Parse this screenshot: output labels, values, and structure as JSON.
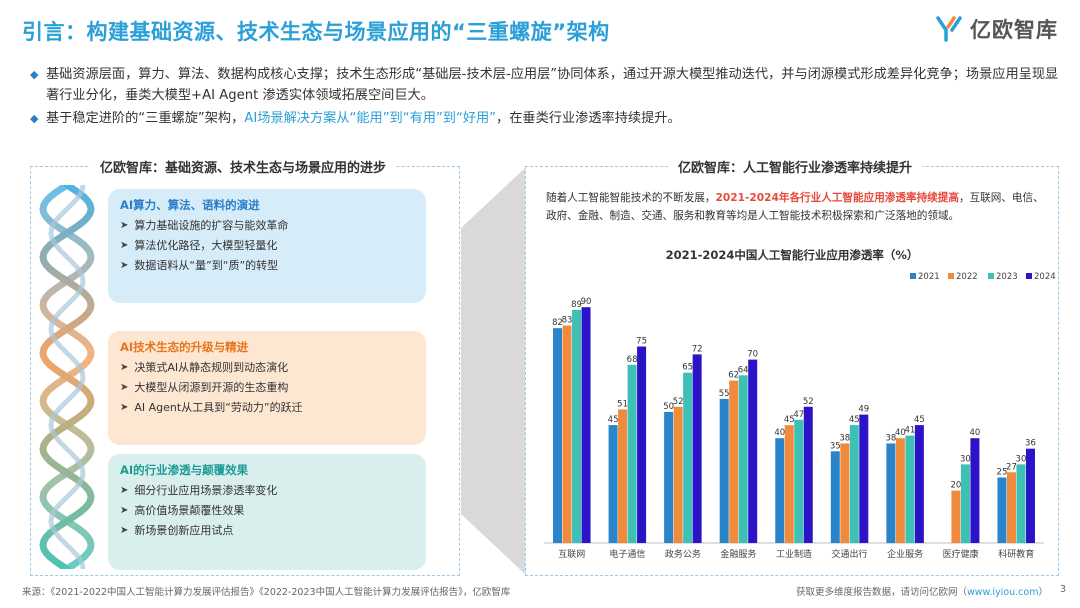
{
  "title": "引言：构建基础资源、技术生态与场景应用的“三重螺旋”架构",
  "logo": {
    "name": "亿欧智库"
  },
  "bullets": [
    {
      "text": "基础资源层面，算力、算法、数据构成核心支撑；技术生态形成“基础层-技术层-应用层”协同体系，通过开源大模型推动迭代，并与闭源模式形成差异化竞争；场景应用呈现显著行业分化，垂类大模型+AI Agent 渗透实体领域拓展空间巨大。"
    },
    {
      "text_a": "基于稳定进阶的“三重螺旋”架构，",
      "highlight": "AI场景解决方案从“能用”到“有用”到“好用”",
      "text_b": "，在垂类行业渗透率持续提升。"
    }
  ],
  "left_panel": {
    "header": "亿欧智库：基础资源、技术生态与场景应用的进步",
    "boxes": [
      {
        "title": "AI算力、算法、语料的演进",
        "items": [
          "算力基础设施的扩容与能效革命",
          "算法优化路径，大模型轻量化",
          "数据语料从“量”到“质”的转型"
        ]
      },
      {
        "title": "AI技术生态的升级与精进",
        "items": [
          "决策式AI从静态规则到动态演化",
          "大模型从闭源到开源的生态重构",
          "AI Agent从工具到“劳动力”的跃迁"
        ]
      },
      {
        "title": "AI的行业渗透与颠覆效果",
        "items": [
          "细分行业应用场景渗透率变化",
          "高价值场景颠覆性效果",
          "新场景创新应用试点"
        ]
      }
    ]
  },
  "right_panel": {
    "header": "亿欧智库：人工智能行业渗透率持续提升",
    "intro_a": "随着人工智能智能技术的不断发展，",
    "intro_highlight": "2021-2024年各行业人工智能应用渗透率持续提高",
    "intro_b": "，互联网、电信、政府、金融、制造、交通、服务和教育等均是人工智能技术积极探索和广泛落地的领域。"
  },
  "chart_data": {
    "type": "bar",
    "title": "2021-2024中国人工智能行业应用渗透率（%）",
    "categories": [
      "互联网",
      "电子通信",
      "政务公务",
      "金融服务",
      "工业制造",
      "交通出行",
      "企业服务",
      "医疗健康",
      "科研教育"
    ],
    "series": [
      {
        "name": "2021",
        "color": "#2a84c9",
        "values": [
          82,
          45,
          50,
          55,
          40,
          35,
          38,
          null,
          25
        ]
      },
      {
        "name": "2022",
        "color": "#f08a3c",
        "values": [
          83,
          51,
          52,
          62,
          45,
          38,
          40,
          20,
          27
        ]
      },
      {
        "name": "2023",
        "color": "#3dc1b4",
        "values": [
          89,
          68,
          65,
          64,
          47,
          45,
          41,
          30,
          30
        ]
      },
      {
        "name": "2024",
        "color": "#2b13c8",
        "values": [
          90,
          75,
          72,
          70,
          52,
          49,
          45,
          40,
          36
        ]
      }
    ],
    "ylim": [
      0,
      100
    ],
    "xlabel": "",
    "ylabel": "",
    "legend": "top-right"
  },
  "footer": {
    "source": "来源：《2021-2022中国人工智能计算力发展评估报告》《2022-2023中国人工智能计算力发展评估报告》，亿欧智库",
    "more_a": "获取更多维度报告数据，请访问亿欧网（",
    "more_link": "www.iyiou.com",
    "more_b": "）",
    "page": "3"
  }
}
